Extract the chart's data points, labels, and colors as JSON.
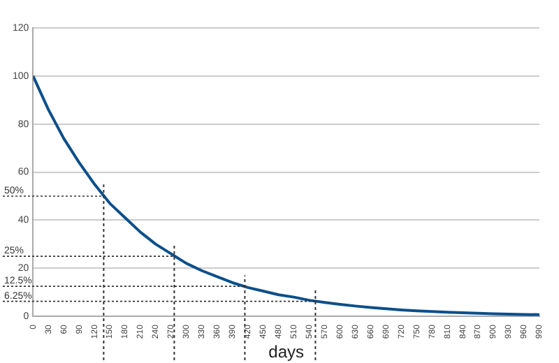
{
  "chart_data": {
    "type": "line",
    "xlabel": "days",
    "x": [
      0,
      30,
      60,
      90,
      120,
      150,
      180,
      210,
      240,
      270,
      300,
      330,
      360,
      390,
      420,
      450,
      480,
      510,
      540,
      570,
      600,
      630,
      660,
      690,
      720,
      750,
      780,
      810,
      840,
      870,
      900,
      930,
      960,
      990
    ],
    "series": [
      {
        "color": "#0b4f8a",
        "values": [
          100,
          86,
          74,
          64,
          55,
          47,
          41,
          35,
          30,
          26,
          22,
          19,
          16.5,
          14,
          12,
          10.5,
          9,
          8,
          6.7,
          5.8,
          5,
          4.3,
          3.7,
          3.2,
          2.7,
          2.3,
          2,
          1.7,
          1.5,
          1.3,
          1.1,
          0.9,
          0.8,
          0.7
        ]
      }
    ],
    "xlim": [
      0,
      990
    ],
    "xticks": [
      0,
      30,
      60,
      90,
      120,
      150,
      180,
      210,
      240,
      270,
      300,
      330,
      360,
      390,
      420,
      450,
      480,
      510,
      540,
      570,
      600,
      630,
      660,
      690,
      720,
      750,
      780,
      810,
      840,
      870,
      900,
      930,
      960,
      990
    ],
    "ylim": [
      0,
      120
    ],
    "yticks": [
      0,
      20,
      40,
      60,
      80,
      100,
      120
    ],
    "ref_lines": [
      {
        "axis": "y",
        "value": 50,
        "label": "50%"
      },
      {
        "axis": "y",
        "value": 25,
        "label": "25%"
      },
      {
        "axis": "y",
        "value": 12.5,
        "label": "12.5%"
      },
      {
        "axis": "y",
        "value": 6.25,
        "label": "6.25%"
      },
      {
        "axis": "x",
        "value": 138
      },
      {
        "axis": "x",
        "value": 276
      },
      {
        "axis": "x",
        "value": 414
      },
      {
        "axis": "x",
        "value": 552
      }
    ],
    "grid": "y",
    "legend": false,
    "marker": "none",
    "line_style": "solid"
  }
}
